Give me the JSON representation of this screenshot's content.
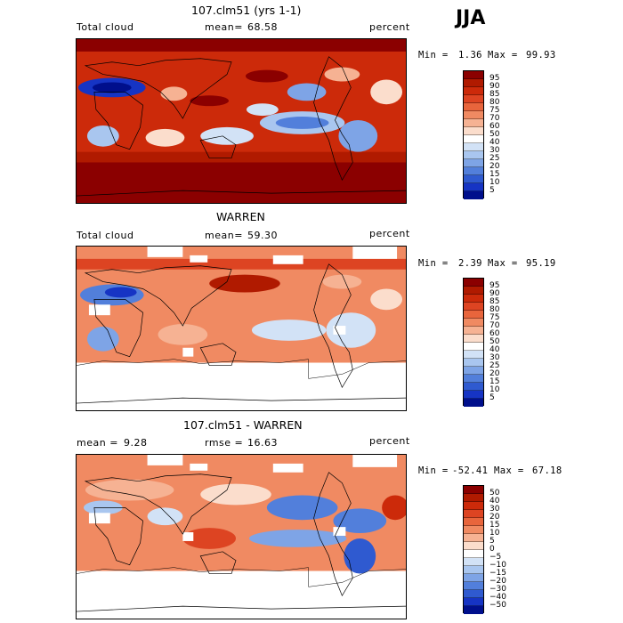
{
  "season_label": "JJA",
  "panels": [
    {
      "title": "107.clm51 (yrs 1-1)",
      "left_label": "Total cloud",
      "mean_label": "mean=",
      "mean_value": "68.58",
      "units": "percent",
      "min_label": "Min =",
      "min_value": "1.36",
      "max_label": "Max =",
      "max_value": "99.93",
      "colorbar_labels": [
        "95",
        "90",
        "85",
        "80",
        "75",
        "70",
        "60",
        "50",
        "40",
        "30",
        "25",
        "20",
        "15",
        "10",
        "5"
      ]
    },
    {
      "title": "WARREN",
      "left_label": "Total cloud",
      "mean_label": "mean=",
      "mean_value": "59.30",
      "units": "percent",
      "min_label": "Min =",
      "min_value": "2.39",
      "max_label": "Max =",
      "max_value": "95.19",
      "colorbar_labels": [
        "95",
        "90",
        "85",
        "80",
        "75",
        "70",
        "60",
        "50",
        "40",
        "30",
        "25",
        "20",
        "15",
        "10",
        "5"
      ]
    },
    {
      "title": "107.clm51 - WARREN",
      "left_label": "mean =",
      "mean_label": "rmse =",
      "left_value": "9.28",
      "mean_value": "16.63",
      "units": "percent",
      "min_label": "Min =",
      "min_value": "-52.41",
      "max_label": "Max =",
      "max_value": "67.18",
      "colorbar_labels": [
        "50",
        "40",
        "30",
        "20",
        "15",
        "10",
        "5",
        "0",
        "−5",
        "−10",
        "−15",
        "−20",
        "−30",
        "−40",
        "−50"
      ]
    }
  ],
  "colors": {
    "scale": [
      "#8b0000",
      "#b01a00",
      "#cc2a0a",
      "#dd4422",
      "#e8653c",
      "#f08a62",
      "#f6b293",
      "#fbddcc",
      "#ffffff",
      "#d2e2f6",
      "#a9c6ef",
      "#7ea4e6",
      "#527fdb",
      "#2f5ad0",
      "#1634c4",
      "#000f8c"
    ]
  }
}
